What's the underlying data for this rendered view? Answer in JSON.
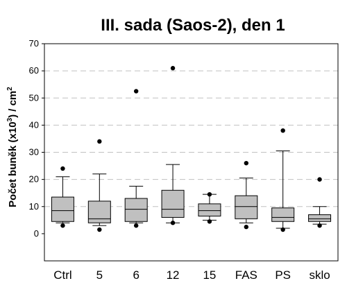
{
  "chart_data": {
    "type": "box",
    "title": "III. sada (Saos-2), den 1",
    "ylabel_main": "Počet buněk (x10",
    "ylabel_exp": "3",
    "ylabel_mid": ") / cm",
    "ylabel_exp2": "2",
    "ylim": [
      -10,
      70
    ],
    "yticks": [
      0,
      10,
      20,
      30,
      40,
      50,
      60,
      70
    ],
    "grid": true,
    "categories": [
      "Ctrl",
      "5",
      "6",
      "12",
      "15",
      "FAS",
      "PS",
      "sklo"
    ],
    "boxes": [
      {
        "whisker_low": 4,
        "q1": 4.5,
        "median": 8.5,
        "q3": 13.5,
        "whisker_high": 21,
        "outliers": [
          3,
          24
        ]
      },
      {
        "whisker_low": 3,
        "q1": 4,
        "median": 5.5,
        "q3": 12,
        "whisker_high": 22,
        "outliers": [
          1.5,
          34
        ]
      },
      {
        "whisker_low": 4,
        "q1": 4.5,
        "median": 9,
        "q3": 13,
        "whisker_high": 17.5,
        "outliers": [
          3,
          52.5
        ]
      },
      {
        "whisker_low": 4,
        "q1": 6,
        "median": 9,
        "q3": 16,
        "whisker_high": 25.5,
        "outliers": [
          4,
          61
        ]
      },
      {
        "whisker_low": 5,
        "q1": 6.5,
        "median": 8.5,
        "q3": 11,
        "whisker_high": 14.5,
        "outliers": [
          4.5,
          14.5
        ]
      },
      {
        "whisker_low": 4,
        "q1": 5.5,
        "median": 10,
        "q3": 14,
        "whisker_high": 20.5,
        "outliers": [
          2.5,
          26
        ]
      },
      {
        "whisker_low": 2,
        "q1": 4.5,
        "median": 6,
        "q3": 9.5,
        "whisker_high": 30.5,
        "outliers": [
          1.5,
          38
        ]
      },
      {
        "whisker_low": 3.5,
        "q1": 4.5,
        "median": 5.5,
        "q3": 7,
        "whisker_high": 10,
        "outliers": [
          3,
          20
        ]
      }
    ],
    "box_fill": "#c0c0c0",
    "line_color": "#000000",
    "grid_color": "#c0c0c0"
  }
}
